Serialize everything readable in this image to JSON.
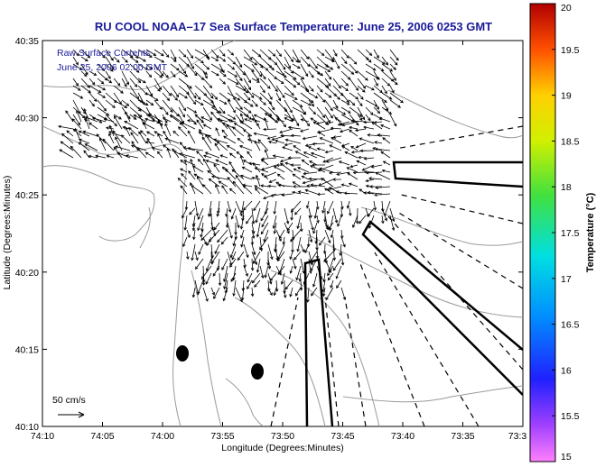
{
  "chart_data": {
    "type": "quiver",
    "title": "RU COOL   NOAA–17  Sea Surface Temperature:  June 25, 2006 0253 GMT",
    "legend": {
      "line1": "Raw Surface Currents",
      "line2": "June 25, 2006 02:00 GMT",
      "scale_label": "50 cm/s",
      "scale_value_cm_s": 50
    },
    "xlabel": "Longitude (Degrees:Minutes)",
    "ylabel": "Latitude (Degrees:Minutes)",
    "x_ticks": [
      "74:10",
      "74:05",
      "74:00",
      "73:55",
      "73:50",
      "73:45",
      "73:40",
      "73:35",
      "73:3"
    ],
    "y_ticks": [
      "40:35",
      "40:30",
      "40:25",
      "40:20",
      "40:15",
      "40:10"
    ],
    "xlim_minutes_west": [
      10,
      30
    ],
    "ylim_minutes_north": [
      10,
      35
    ],
    "colorbar": {
      "label": "Temperature (°C)",
      "ticks": [
        "20",
        "19.5",
        "19",
        "18.5",
        "18",
        "17.5",
        "17",
        "16.5",
        "16",
        "15.5",
        "15"
      ],
      "range": [
        15,
        20
      ]
    },
    "colors": {
      "title": "#1a1a9a",
      "coastline": "#9a9a9a",
      "vectors": "#000000",
      "shipping_lanes": "#000000"
    }
  }
}
